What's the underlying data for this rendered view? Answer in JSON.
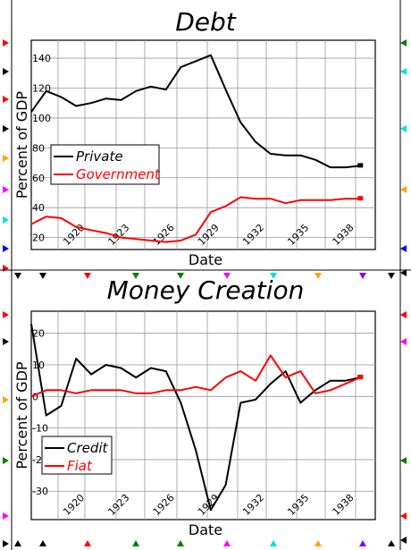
{
  "chart_data": [
    {
      "type": "line",
      "title": "Debt",
      "xlabel": "Date",
      "ylabel": "Percent of GDP",
      "xlim": [
        1917,
        1940
      ],
      "ylim": [
        12,
        152
      ],
      "x_ticks": [
        "1920",
        "1923",
        "1926",
        "1929",
        "1932",
        "1935",
        "1938"
      ],
      "y_ticks": [
        20,
        40,
        60,
        80,
        100,
        120,
        140
      ],
      "grid": true,
      "legend_position": "middle-left",
      "series": [
        {
          "name": "Private",
          "color": "#000000",
          "x": [
            1917,
            1918,
            1919,
            1920,
            1921,
            1922,
            1923,
            1924,
            1925,
            1926,
            1927,
            1928,
            1929,
            1930,
            1931,
            1932,
            1933,
            1934,
            1935,
            1936,
            1937,
            1938,
            1939
          ],
          "y": [
            104,
            118,
            114,
            108,
            110,
            113,
            112,
            118,
            121,
            119,
            134,
            138,
            142,
            119,
            97,
            84,
            76,
            75,
            75,
            72,
            67,
            67,
            68
          ]
        },
        {
          "name": "Government",
          "color": "#ff0000",
          "x": [
            1917,
            1918,
            1919,
            1920,
            1921,
            1922,
            1923,
            1924,
            1925,
            1926,
            1927,
            1928,
            1929,
            1930,
            1931,
            1932,
            1933,
            1934,
            1935,
            1936,
            1937,
            1938,
            1939
          ],
          "y": [
            29,
            34,
            33,
            27,
            25,
            23,
            20,
            19,
            18,
            17,
            18,
            22,
            37,
            41,
            47,
            46,
            46,
            43,
            45,
            45,
            45,
            46,
            46
          ]
        }
      ]
    },
    {
      "type": "line",
      "title": "Money Creation",
      "xlabel": "Date",
      "ylabel": "Percent of GDP",
      "xlim": [
        1917,
        1940
      ],
      "ylim": [
        -39,
        27
      ],
      "x_ticks": [
        "1920",
        "1923",
        "1926",
        "1929",
        "1932",
        "1935",
        "1938"
      ],
      "y_ticks": [
        -30,
        -20,
        -10,
        0,
        10,
        20
      ],
      "grid": true,
      "legend_position": "bottom-left",
      "series": [
        {
          "name": "Credit",
          "color": "#000000",
          "x": [
            1917,
            1918,
            1919,
            1920,
            1921,
            1922,
            1923,
            1924,
            1925,
            1926,
            1927,
            1928,
            1929,
            1930,
            1931,
            1932,
            1933,
            1934,
            1935,
            1936,
            1937,
            1938,
            1939
          ],
          "y": [
            23,
            -6,
            -3,
            12,
            7,
            10,
            9,
            6,
            9,
            8,
            -2,
            -17,
            -36,
            -28,
            -2,
            -1,
            4,
            8,
            -2,
            2,
            5,
            5,
            6
          ]
        },
        {
          "name": "Fiat",
          "color": "#ff0000",
          "x": [
            1917,
            1918,
            1919,
            1920,
            1921,
            1922,
            1923,
            1924,
            1925,
            1926,
            1927,
            1928,
            1929,
            1930,
            1931,
            1932,
            1933,
            1934,
            1935,
            1936,
            1937,
            1938,
            1939
          ],
          "y": [
            0,
            2,
            2,
            1,
            2,
            2,
            2,
            1,
            1,
            2,
            2,
            3,
            2,
            6,
            8,
            5,
            13,
            6,
            8,
            1,
            2,
            4,
            6
          ]
        }
      ]
    }
  ]
}
